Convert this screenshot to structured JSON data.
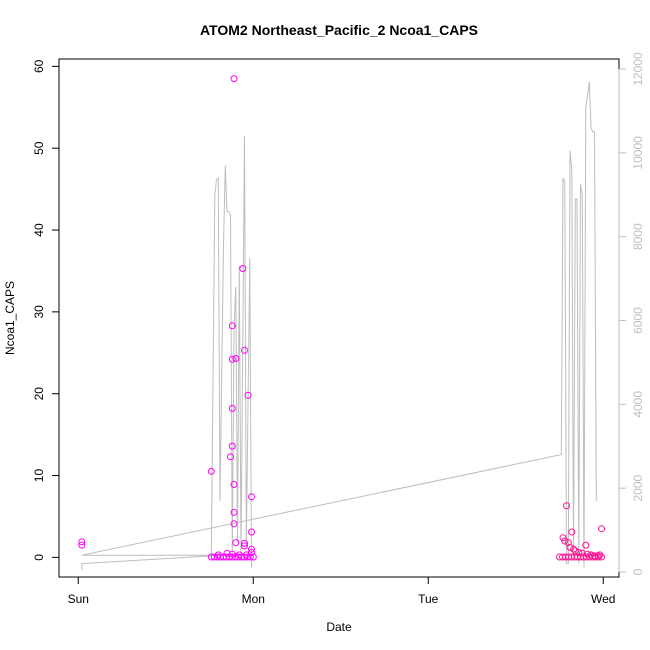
{
  "chart_data": {
    "type": "scatter",
    "title": "ATOM2 Northeast_Pacific_2 Ncoa1_CAPS",
    "xlabel": "Date",
    "ylabel": "Ncoa1_CAPS",
    "x_ticks": [
      "Sun",
      "Mon",
      "Tue",
      "Wed"
    ],
    "x_tick_values": [
      0,
      1,
      2,
      3
    ],
    "xlim": [
      -0.11,
      3.09
    ],
    "ylim": [
      -2.4,
      60.9
    ],
    "y_ticks": [
      0,
      10,
      20,
      30,
      40,
      50,
      60
    ],
    "y2lim": [
      -120,
      12240
    ],
    "y2_ticks": [
      0,
      2000,
      4000,
      6000,
      8000,
      10000,
      12000
    ],
    "grid": false,
    "point_series": [
      {
        "color": "#ff00ff",
        "points": [
          [
            0.02,
            1.9
          ],
          [
            0.02,
            1.5
          ],
          [
            0.76,
            10.5
          ],
          [
            0.89,
            58.5
          ],
          [
            0.88,
            28.3
          ],
          [
            0.88,
            24.2
          ],
          [
            0.9,
            24.3
          ],
          [
            0.94,
            35.3
          ],
          [
            0.95,
            25.3
          ],
          [
            0.88,
            18.2
          ],
          [
            0.97,
            19.8
          ],
          [
            0.88,
            13.6
          ],
          [
            0.87,
            12.3
          ],
          [
            0.89,
            8.9
          ],
          [
            0.89,
            5.5
          ],
          [
            0.89,
            4.1
          ],
          [
            0.99,
            7.4
          ],
          [
            0.99,
            3.1
          ],
          [
            0.95,
            1.7
          ],
          [
            0.95,
            1.4
          ],
          [
            0.9,
            1.8
          ],
          [
            0.99,
            1.0
          ],
          [
            0.99,
            0.6
          ],
          [
            0.8,
            0.3
          ],
          [
            0.85,
            0.5
          ],
          [
            0.88,
            0.4
          ],
          [
            0.92,
            0.3
          ],
          [
            0.96,
            0.3
          ]
        ]
      },
      {
        "color": "#ff1493",
        "points": [
          [
            2.79,
            6.3
          ],
          [
            2.82,
            3.1
          ],
          [
            2.99,
            3.5
          ],
          [
            2.9,
            1.5
          ],
          [
            2.77,
            2.4
          ],
          [
            2.78,
            2.0
          ],
          [
            2.8,
            1.8
          ],
          [
            2.81,
            1.2
          ],
          [
            2.83,
            1.0
          ],
          [
            2.84,
            0.8
          ],
          [
            2.86,
            0.6
          ],
          [
            2.88,
            0.5
          ],
          [
            2.91,
            0.4
          ],
          [
            2.93,
            0.3
          ],
          [
            2.95,
            0.2
          ],
          [
            2.97,
            0.2
          ],
          [
            2.98,
            0.3
          ]
        ]
      }
    ],
    "baseline_clusters": [
      {
        "color": "#ff00ff",
        "x_start": 0.76,
        "x_end": 1.0,
        "y": 0.05
      },
      {
        "color": "#ff1493",
        "x_start": 2.75,
        "x_end": 3.0,
        "y": 0.05
      }
    ],
    "line_series": {
      "color": "#bebebe",
      "axis": "right",
      "points": [
        [
          0.02,
          50
        ],
        [
          0.02,
          200
        ],
        [
          0.75,
          380
        ],
        [
          0.76,
          380
        ],
        [
          0.78,
          9000
        ],
        [
          0.79,
          9350
        ],
        [
          0.8,
          9400
        ],
        [
          0.81,
          1700
        ],
        [
          0.83,
          7800
        ],
        [
          0.84,
          9700
        ],
        [
          0.85,
          8600
        ],
        [
          0.86,
          8600
        ],
        [
          0.87,
          8500
        ],
        [
          0.88,
          400
        ],
        [
          0.89,
          5800
        ],
        [
          0.9,
          6800
        ],
        [
          0.91,
          700
        ],
        [
          0.92,
          7300
        ],
        [
          0.93,
          400
        ],
        [
          0.95,
          10400
        ],
        [
          0.96,
          600
        ],
        [
          0.98,
          7500
        ],
        [
          0.99,
          100
        ],
        [
          0.99,
          400
        ],
        [
          0.02,
          400
        ],
        [
          2.76,
          2800
        ],
        [
          2.77,
          9400
        ],
        [
          2.78,
          9300
        ],
        [
          2.79,
          200
        ],
        [
          2.8,
          200
        ],
        [
          2.81,
          10050
        ],
        [
          2.82,
          9600
        ],
        [
          2.83,
          300
        ],
        [
          2.84,
          8900
        ],
        [
          2.85,
          8900
        ],
        [
          2.86,
          200
        ],
        [
          2.87,
          9250
        ],
        [
          2.88,
          9000
        ],
        [
          2.89,
          100
        ],
        [
          2.9,
          11100
        ],
        [
          2.91,
          11350
        ],
        [
          2.92,
          11700
        ],
        [
          2.93,
          10600
        ],
        [
          2.94,
          10500
        ],
        [
          2.95,
          10500
        ],
        [
          2.96,
          1700
        ]
      ]
    }
  }
}
